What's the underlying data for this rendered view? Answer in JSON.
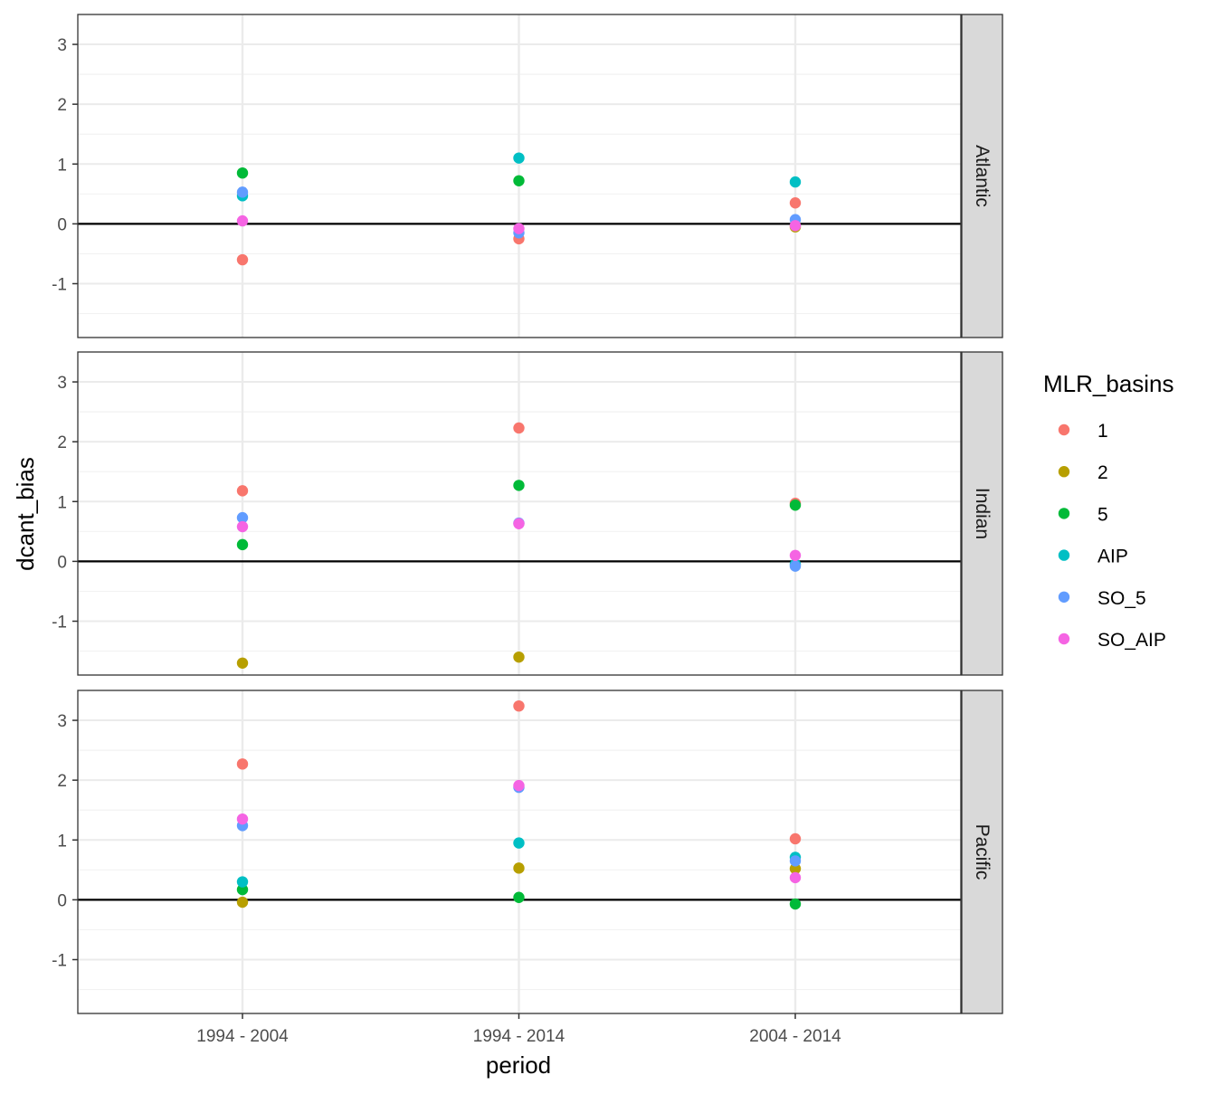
{
  "chart_data": {
    "type": "scatter",
    "xlabel": "period",
    "ylabel": "dcant_bias",
    "categories": [
      "1994 - 2004",
      "1994 - 2014",
      "2004 - 2014"
    ],
    "ylim": [
      -1.9,
      3.5
    ],
    "yticks": [
      -1,
      0,
      1,
      2,
      3
    ],
    "grid": true,
    "reference_line_y": 0,
    "legend": {
      "title": "MLR_basins",
      "placement": "right",
      "entries": [
        {
          "label": "1",
          "color": "#F8766D"
        },
        {
          "label": "2",
          "color": "#B79F00"
        },
        {
          "label": "5",
          "color": "#00BA38"
        },
        {
          "label": "AIP",
          "color": "#00BFC4"
        },
        {
          "label": "SO_5",
          "color": "#619CFF"
        },
        {
          "label": "SO_AIP",
          "color": "#F564E3"
        }
      ]
    },
    "panels": [
      {
        "label": "Atlantic",
        "series": [
          {
            "name": "1",
            "values": [
              -0.6,
              -0.25,
              0.35
            ]
          },
          {
            "name": "2",
            "values": [
              null,
              null,
              -0.05
            ]
          },
          {
            "name": "5",
            "values": [
              0.85,
              0.72,
              null
            ]
          },
          {
            "name": "AIP",
            "values": [
              0.47,
              1.1,
              0.7
            ]
          },
          {
            "name": "SO_5",
            "values": [
              0.53,
              -0.15,
              0.07
            ]
          },
          {
            "name": "SO_AIP",
            "values": [
              0.05,
              -0.08,
              -0.03
            ]
          }
        ]
      },
      {
        "label": "Indian",
        "series": [
          {
            "name": "1",
            "values": [
              1.18,
              2.23,
              0.97
            ]
          },
          {
            "name": "2",
            "values": [
              -1.7,
              -1.6,
              null
            ]
          },
          {
            "name": "5",
            "values": [
              0.28,
              1.27,
              0.94
            ]
          },
          {
            "name": "AIP",
            "values": [
              null,
              null,
              -0.05
            ]
          },
          {
            "name": "SO_5",
            "values": [
              0.73,
              0.64,
              -0.08
            ]
          },
          {
            "name": "SO_AIP",
            "values": [
              0.58,
              0.63,
              0.1
            ]
          }
        ]
      },
      {
        "label": "Pacific",
        "series": [
          {
            "name": "1",
            "values": [
              2.27,
              3.24,
              1.02
            ]
          },
          {
            "name": "2",
            "values": [
              -0.04,
              0.53,
              0.52
            ]
          },
          {
            "name": "5",
            "values": [
              0.17,
              0.04,
              -0.07
            ]
          },
          {
            "name": "AIP",
            "values": [
              0.3,
              0.95,
              0.71
            ]
          },
          {
            "name": "SO_5",
            "values": [
              1.24,
              1.88,
              0.65
            ]
          },
          {
            "name": "SO_AIP",
            "values": [
              1.35,
              1.91,
              0.37
            ]
          }
        ]
      }
    ]
  }
}
